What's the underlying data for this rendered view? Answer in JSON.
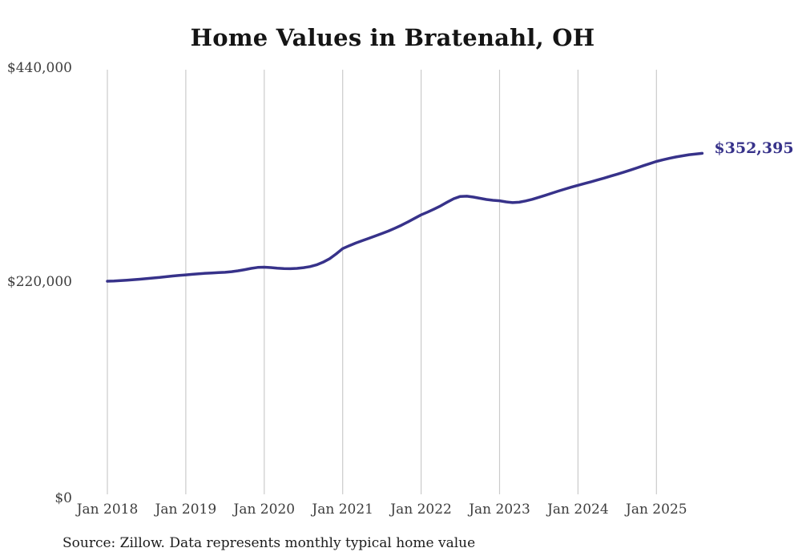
{
  "title": "Home Values in Bratenahl, OH",
  "source_note": "Source: Zillow. Data represents monthly typical home value",
  "end_label": "$352,395",
  "colors": {
    "line": "#37328a",
    "grid": "#cbcbcb",
    "axis_text": "#3d3d3d",
    "title_text": "#151515",
    "background": "#ffffff"
  },
  "chart_data": {
    "type": "line",
    "title": "Home Values in Bratenahl, OH",
    "xlabel": "",
    "ylabel": "",
    "ylim": [
      0,
      440000
    ],
    "grid": "vertical-only",
    "legend": "none",
    "y_tick_labels": [
      "$0",
      "$220,000",
      "$440,000"
    ],
    "y_tick_values": [
      0,
      220000,
      440000
    ],
    "x_tick_labels": [
      "Jan 2018",
      "Jan 2019",
      "Jan 2020",
      "Jan 2021",
      "Jan 2022",
      "Jan 2023",
      "Jan 2024",
      "Jan 2025"
    ],
    "frequency": "monthly",
    "end_value": 352395,
    "series": [
      {
        "name": "Typical home value",
        "x": [
          "2018-01",
          "2018-02",
          "2018-03",
          "2018-04",
          "2018-05",
          "2018-06",
          "2018-07",
          "2018-08",
          "2018-09",
          "2018-10",
          "2018-11",
          "2018-12",
          "2019-01",
          "2019-02",
          "2019-03",
          "2019-04",
          "2019-05",
          "2019-06",
          "2019-07",
          "2019-08",
          "2019-09",
          "2019-10",
          "2019-11",
          "2019-12",
          "2020-01",
          "2020-02",
          "2020-03",
          "2020-04",
          "2020-05",
          "2020-06",
          "2020-07",
          "2020-08",
          "2020-09",
          "2020-10",
          "2020-11",
          "2020-12",
          "2021-01",
          "2021-02",
          "2021-03",
          "2021-04",
          "2021-05",
          "2021-06",
          "2021-07",
          "2021-08",
          "2021-09",
          "2021-10",
          "2021-11",
          "2021-12",
          "2022-01",
          "2022-02",
          "2022-03",
          "2022-04",
          "2022-05",
          "2022-06",
          "2022-07",
          "2022-08",
          "2022-09",
          "2022-10",
          "2022-11",
          "2022-12",
          "2023-01",
          "2023-02",
          "2023-03",
          "2023-04",
          "2023-05",
          "2023-06",
          "2023-07",
          "2023-08",
          "2023-09",
          "2023-10",
          "2023-11",
          "2023-12",
          "2024-01",
          "2024-02",
          "2024-03",
          "2024-04",
          "2024-05",
          "2024-06",
          "2024-07",
          "2024-08",
          "2024-09",
          "2024-10",
          "2024-11",
          "2024-12",
          "2025-01",
          "2025-02",
          "2025-03",
          "2025-04",
          "2025-05",
          "2025-06",
          "2025-07",
          "2025-08"
        ],
        "values": [
          221000,
          221300,
          221700,
          222100,
          222600,
          223100,
          223700,
          224300,
          224900,
          225600,
          226400,
          227000,
          227500,
          228100,
          228700,
          229200,
          229500,
          229800,
          230200,
          230800,
          231700,
          232900,
          234200,
          235200,
          235400,
          235000,
          234400,
          234000,
          233900,
          234200,
          234900,
          236000,
          237800,
          240500,
          244200,
          249000,
          254500,
          257500,
          260200,
          262700,
          265100,
          267500,
          270000,
          272600,
          275500,
          278600,
          282000,
          285600,
          289200,
          292100,
          295200,
          298500,
          302300,
          305800,
          308100,
          308400,
          307500,
          306200,
          305000,
          304200,
          303700,
          302500,
          301800,
          302200,
          303500,
          305200,
          307200,
          309300,
          311500,
          313600,
          315700,
          317700,
          319600,
          321400,
          323200,
          325100,
          327000,
          329000,
          331000,
          333100,
          335200,
          337400,
          339700,
          341900,
          344100,
          345800,
          347300,
          348700,
          349900,
          351000,
          351700,
          352395
        ]
      }
    ]
  }
}
